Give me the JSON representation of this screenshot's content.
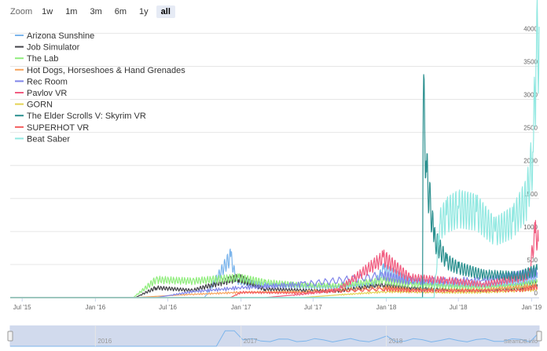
{
  "zoom": {
    "label": "Zoom",
    "buttons": [
      "1w",
      "1m",
      "3m",
      "6m",
      "1y",
      "all"
    ],
    "active": "all"
  },
  "chart_data": {
    "type": "line",
    "title": "",
    "xlabel": "",
    "ylabel": "",
    "legend_position": "top-left",
    "grid": true,
    "xlim": [
      "2015-06-01",
      "2019-01-20"
    ],
    "ylim": [
      0,
      4100
    ],
    "x_ticks": [
      "Jul '15",
      "Jan '16",
      "Jul '16",
      "Jan '17",
      "Jul '17",
      "Jan '18",
      "Jul '18",
      "Jan '19"
    ],
    "y_ticks": [
      0,
      500,
      1000,
      1500,
      2000,
      2500,
      3000,
      3500,
      4000
    ],
    "series": [
      {
        "name": "Arizona Sunshine",
        "color": "#7cb5ec",
        "x": [
          "2016-07-01",
          "2016-10-01",
          "2016-12-06",
          "2016-12-20",
          "2017-03-01",
          "2017-06-01",
          "2017-09-01",
          "2017-12-01",
          "2017-12-25",
          "2018-03-01",
          "2018-06-01",
          "2018-09-01",
          "2018-12-01",
          "2019-01-15"
        ],
        "y": [
          0,
          0,
          620,
          260,
          190,
          170,
          160,
          190,
          430,
          260,
          200,
          190,
          230,
          300
        ]
      },
      {
        "name": "Job Simulator",
        "color": "#434348",
        "x": [
          "2016-04-10",
          "2016-06-01",
          "2016-09-01",
          "2016-12-25",
          "2017-03-01",
          "2017-06-01",
          "2017-09-01",
          "2017-12-25",
          "2018-03-01",
          "2018-06-01",
          "2018-09-01",
          "2018-12-01",
          "2019-01-15"
        ],
        "y": [
          0,
          150,
          110,
          300,
          130,
          110,
          100,
          200,
          150,
          120,
          110,
          150,
          200
        ]
      },
      {
        "name": "The Lab",
        "color": "#90ed7d",
        "x": [
          "2016-04-05",
          "2016-06-01",
          "2016-09-01",
          "2016-12-25",
          "2017-03-01",
          "2017-06-01",
          "2017-09-01",
          "2017-12-25",
          "2018-03-01",
          "2018-06-01",
          "2018-09-01",
          "2018-12-01",
          "2019-01-15"
        ],
        "y": [
          0,
          270,
          250,
          300,
          230,
          190,
          180,
          260,
          200,
          170,
          150,
          180,
          230
        ]
      },
      {
        "name": "Hot Dogs, Horseshoes & Hand Grenades",
        "color": "#f7a35c",
        "x": [
          "2016-04-05",
          "2016-09-01",
          "2017-01-01",
          "2017-06-01",
          "2017-12-25",
          "2018-03-01",
          "2018-09-01",
          "2019-01-15"
        ],
        "y": [
          0,
          50,
          80,
          90,
          150,
          120,
          120,
          180
        ]
      },
      {
        "name": "Rec Room",
        "color": "#8085e9",
        "x": [
          "2016-06-01",
          "2016-09-01",
          "2017-01-01",
          "2017-06-01",
          "2017-12-25",
          "2018-03-01",
          "2018-09-01",
          "2018-12-25",
          "2019-01-15"
        ],
        "y": [
          0,
          90,
          150,
          200,
          330,
          250,
          260,
          360,
          380
        ]
      },
      {
        "name": "Pavlov VR",
        "color": "#f15c80",
        "x": [
          "2017-03-01",
          "2017-06-01",
          "2017-09-01",
          "2017-12-25",
          "2018-03-01",
          "2018-06-01",
          "2018-09-01",
          "2018-12-25",
          "2019-01-10",
          "2019-01-18"
        ],
        "y": [
          0,
          50,
          120,
          600,
          300,
          260,
          200,
          320,
          980,
          850
        ]
      },
      {
        "name": "GORN",
        "color": "#e4d354",
        "x": [
          "2017-06-01",
          "2017-09-01",
          "2018-01-01",
          "2018-06-01",
          "2018-09-01",
          "2019-01-15"
        ],
        "y": [
          0,
          40,
          90,
          80,
          80,
          120
        ]
      },
      {
        "name": "The Elder Scrolls V: Skyrim VR",
        "color": "#2b908f",
        "x": [
          "2018-03-01",
          "2018-04-02",
          "2018-04-04",
          "2018-04-12",
          "2018-05-01",
          "2018-06-01",
          "2018-07-01",
          "2018-09-01",
          "2018-12-01",
          "2019-01-15"
        ],
        "y": [
          0,
          0,
          3000,
          1900,
          900,
          550,
          450,
          350,
          330,
          420
        ]
      },
      {
        "name": "SUPERHOT VR",
        "color": "#f45b5b",
        "x": [
          "2016-12-05",
          "2017-01-01",
          "2017-06-01",
          "2017-12-25",
          "2018-03-01",
          "2018-06-01",
          "2018-12-01",
          "2019-01-15"
        ],
        "y": [
          0,
          80,
          70,
          130,
          110,
          100,
          110,
          160
        ]
      },
      {
        "name": "Beat Saber",
        "color": "#91e8e1",
        "x": [
          "2018-05-01",
          "2018-05-15",
          "2018-06-01",
          "2018-07-01",
          "2018-08-15",
          "2018-10-01",
          "2018-11-15",
          "2018-12-20",
          "2019-01-05",
          "2019-01-12",
          "2019-01-20"
        ],
        "y": [
          0,
          1100,
          1250,
          1350,
          1300,
          1000,
          1150,
          1500,
          2200,
          3500,
          4100
        ]
      }
    ],
    "navigator": {
      "labels": [
        "2016",
        "2017",
        "2018"
      ],
      "credit": "SteamDB.info"
    }
  }
}
